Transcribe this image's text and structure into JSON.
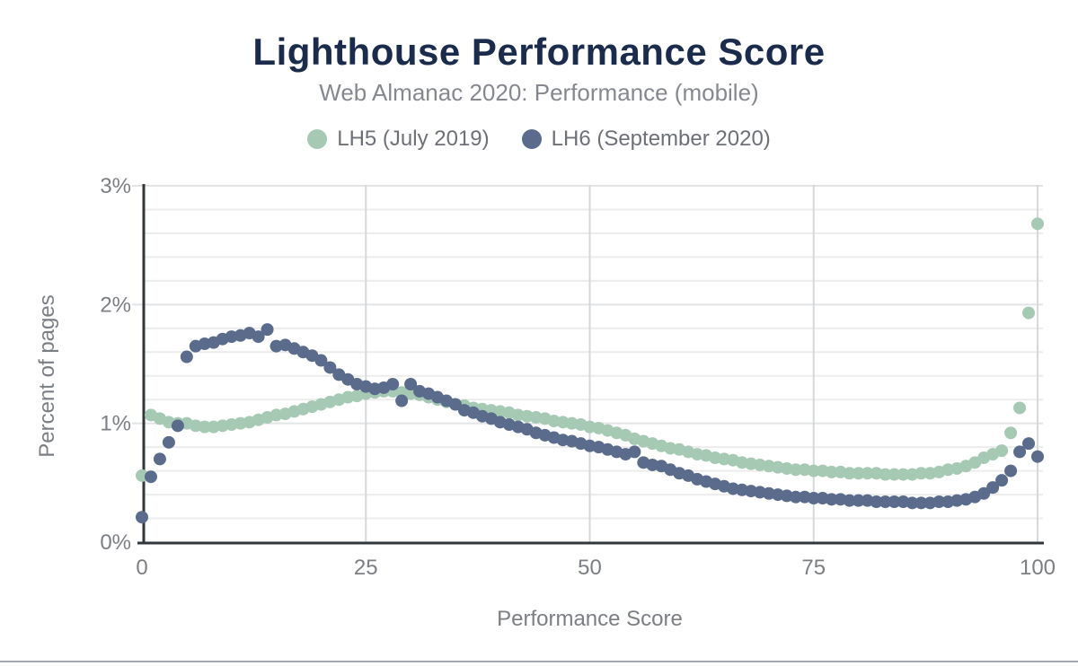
{
  "page": {
    "title": "Lighthouse Performance Score",
    "subtitle": "Web Almanac 2020: Performance (mobile)"
  },
  "legend": {
    "items": [
      {
        "label": "LH5 (July 2019)",
        "color": "#a6c9b4"
      },
      {
        "label": "LH6 (September 2020)",
        "color": "#5a6b8c"
      }
    ]
  },
  "chart_data": {
    "type": "scatter",
    "title": "Lighthouse Performance Score",
    "subtitle": "Web Almanac 2020: Performance (mobile)",
    "xlabel": "Performance Score",
    "ylabel": "Percent of pages",
    "xlim": [
      0,
      100
    ],
    "ylim": [
      0,
      3
    ],
    "x_ticks": [
      0,
      25,
      50,
      75,
      100
    ],
    "y_ticks": [
      {
        "value": 0,
        "label": "0%"
      },
      {
        "value": 1,
        "label": "1%"
      },
      {
        "value": 2,
        "label": "2%"
      },
      {
        "value": 3,
        "label": "3%"
      }
    ],
    "grid": {
      "horizontal_step_percent": 0.2,
      "vertical_lines_at": [
        25,
        50,
        75,
        100
      ]
    },
    "legend_position": "top",
    "point_radius_px": 7,
    "x": [
      0,
      1,
      2,
      3,
      4,
      5,
      6,
      7,
      8,
      9,
      10,
      11,
      12,
      13,
      14,
      15,
      16,
      17,
      18,
      19,
      20,
      21,
      22,
      23,
      24,
      25,
      26,
      27,
      28,
      29,
      30,
      31,
      32,
      33,
      34,
      35,
      36,
      37,
      38,
      39,
      40,
      41,
      42,
      43,
      44,
      45,
      46,
      47,
      48,
      49,
      50,
      51,
      52,
      53,
      54,
      55,
      56,
      57,
      58,
      59,
      60,
      61,
      62,
      63,
      64,
      65,
      66,
      67,
      68,
      69,
      70,
      71,
      72,
      73,
      74,
      75,
      76,
      77,
      78,
      79,
      80,
      81,
      82,
      83,
      84,
      85,
      86,
      87,
      88,
      89,
      90,
      91,
      92,
      93,
      94,
      95,
      96,
      97,
      98,
      99,
      100
    ],
    "series": [
      {
        "name": "LH5 (July 2019)",
        "color": "#a6c9b4",
        "values": [
          0.56,
          1.07,
          1.04,
          1.01,
          1.0,
          1.0,
          0.98,
          0.97,
          0.97,
          0.98,
          0.99,
          1.0,
          1.01,
          1.03,
          1.05,
          1.07,
          1.08,
          1.1,
          1.12,
          1.14,
          1.16,
          1.18,
          1.2,
          1.22,
          1.23,
          1.25,
          1.26,
          1.27,
          1.27,
          1.26,
          1.25,
          1.24,
          1.22,
          1.2,
          1.18,
          1.16,
          1.15,
          1.13,
          1.12,
          1.11,
          1.1,
          1.09,
          1.07,
          1.06,
          1.05,
          1.04,
          1.02,
          1.01,
          1.0,
          0.99,
          0.97,
          0.96,
          0.94,
          0.92,
          0.9,
          0.87,
          0.85,
          0.83,
          0.81,
          0.79,
          0.78,
          0.76,
          0.74,
          0.73,
          0.71,
          0.7,
          0.69,
          0.67,
          0.66,
          0.65,
          0.64,
          0.63,
          0.62,
          0.61,
          0.61,
          0.6,
          0.6,
          0.59,
          0.59,
          0.58,
          0.58,
          0.58,
          0.58,
          0.57,
          0.57,
          0.57,
          0.57,
          0.58,
          0.58,
          0.59,
          0.61,
          0.62,
          0.64,
          0.67,
          0.71,
          0.74,
          0.77,
          0.92,
          1.13,
          1.93,
          2.68
        ]
      },
      {
        "name": "LH6 (September 2020)",
        "color": "#5a6b8c",
        "values": [
          0.21,
          0.55,
          0.7,
          0.84,
          0.98,
          1.56,
          1.65,
          1.67,
          1.68,
          1.71,
          1.73,
          1.74,
          1.76,
          1.73,
          1.79,
          1.65,
          1.66,
          1.63,
          1.6,
          1.57,
          1.53,
          1.47,
          1.41,
          1.37,
          1.33,
          1.31,
          1.29,
          1.3,
          1.33,
          1.19,
          1.33,
          1.27,
          1.25,
          1.22,
          1.19,
          1.16,
          1.11,
          1.09,
          1.06,
          1.04,
          1.01,
          0.99,
          0.97,
          0.95,
          0.92,
          0.9,
          0.88,
          0.86,
          0.85,
          0.83,
          0.81,
          0.8,
          0.78,
          0.76,
          0.74,
          0.76,
          0.67,
          0.65,
          0.64,
          0.61,
          0.58,
          0.56,
          0.53,
          0.51,
          0.49,
          0.47,
          0.45,
          0.44,
          0.43,
          0.42,
          0.41,
          0.4,
          0.39,
          0.38,
          0.38,
          0.37,
          0.37,
          0.36,
          0.36,
          0.35,
          0.35,
          0.35,
          0.34,
          0.34,
          0.34,
          0.34,
          0.33,
          0.33,
          0.33,
          0.34,
          0.34,
          0.35,
          0.36,
          0.38,
          0.41,
          0.46,
          0.52,
          0.6,
          0.76,
          0.83,
          0.72
        ]
      }
    ],
    "axis_color": "#32373c",
    "grid_color_minor": "#ececec",
    "grid_color_vertical": "#d5d8da",
    "text_color": "#7b7f84"
  }
}
